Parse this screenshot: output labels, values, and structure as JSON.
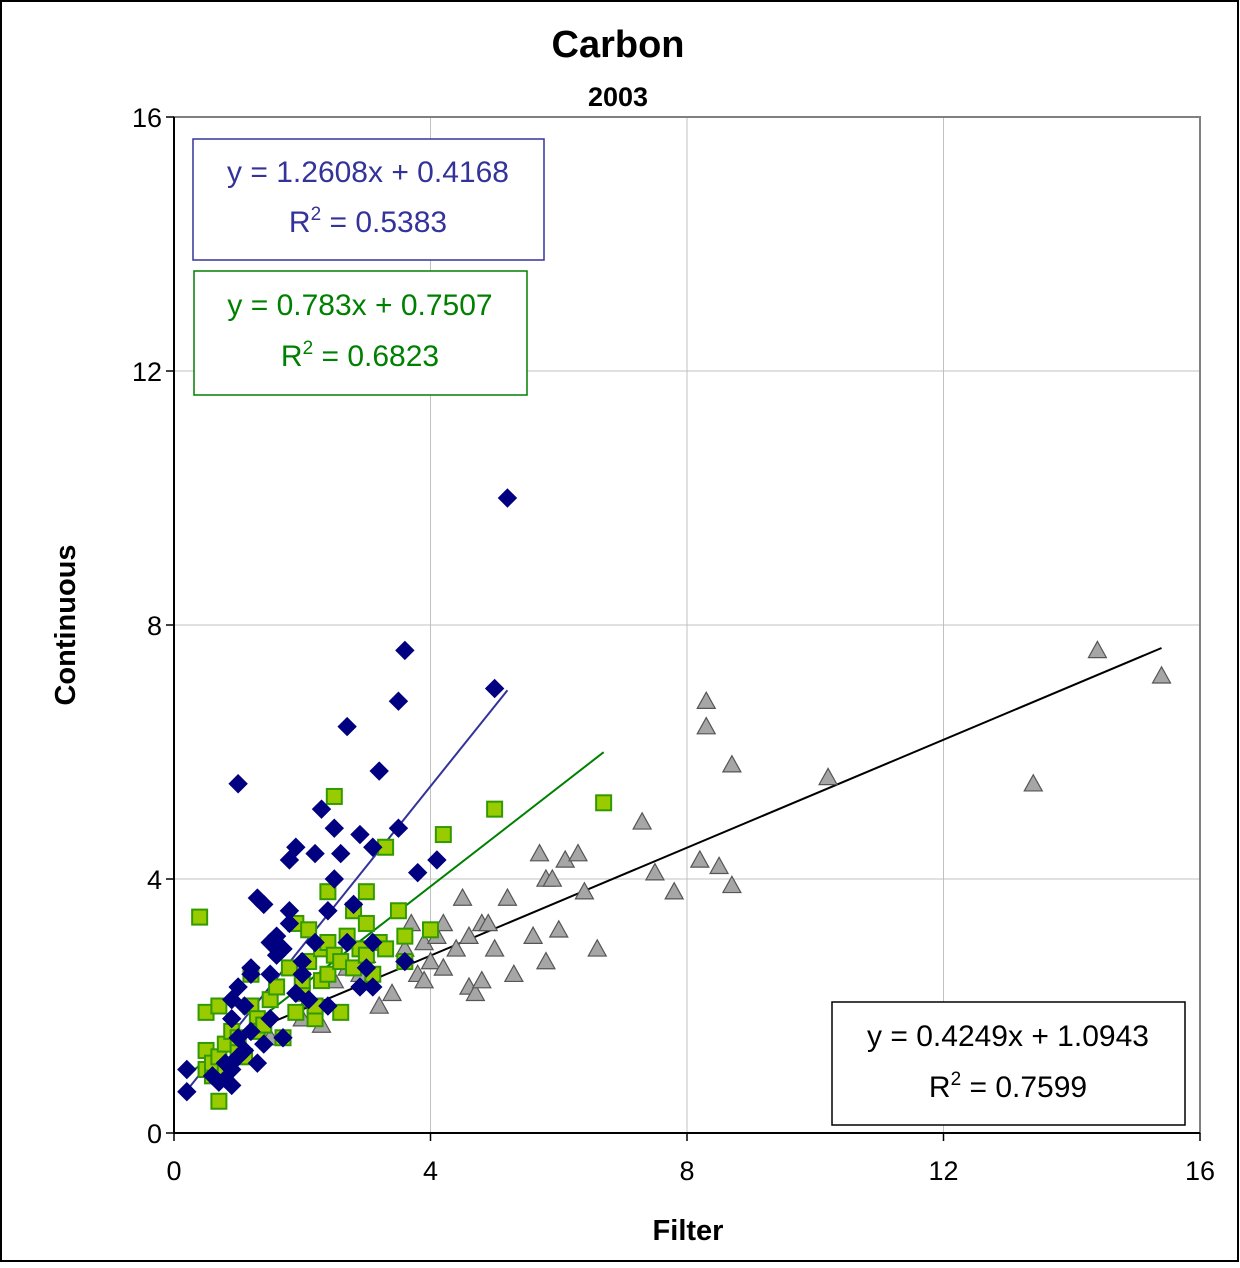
{
  "chart_data": {
    "type": "scatter",
    "title": "Carbon",
    "subtitle": "2003",
    "xlabel": "Filter",
    "ylabel": "Continuous",
    "xlim": [
      0,
      16
    ],
    "ylim": [
      0,
      16
    ],
    "x_ticks": [
      "0",
      "4",
      "8",
      "12",
      "16"
    ],
    "y_ticks": [
      "0",
      "4",
      "8",
      "12",
      "16"
    ],
    "grid": true,
    "legend": "none",
    "series": [
      {
        "marker": "diamond",
        "color": "#000080",
        "fit_color": "#33339a",
        "fit": {
          "slope": 1.2608,
          "intercept": 0.4168,
          "x_range": [
            0.2,
            5.2
          ]
        },
        "equation": "y = 1.2608x + 0.4168",
        "r2_label": "R",
        "r2_sup": "2",
        "r2_value": " = 0.5383",
        "points": [
          [
            0.2,
            1.0
          ],
          [
            0.2,
            0.65
          ],
          [
            0.6,
            0.9
          ],
          [
            0.7,
            0.8
          ],
          [
            0.8,
            1.1
          ],
          [
            0.8,
            0.85
          ],
          [
            0.9,
            1.0
          ],
          [
            0.9,
            0.75
          ],
          [
            0.9,
            1.8
          ],
          [
            0.9,
            2.1
          ],
          [
            1.0,
            2.3
          ],
          [
            1.0,
            1.5
          ],
          [
            1.0,
            1.2
          ],
          [
            1.0,
            5.5
          ],
          [
            1.1,
            1.3
          ],
          [
            1.1,
            2.0
          ],
          [
            1.2,
            2.6
          ],
          [
            1.2,
            2.5
          ],
          [
            1.2,
            1.6
          ],
          [
            1.3,
            1.1
          ],
          [
            1.3,
            3.7
          ],
          [
            1.4,
            3.6
          ],
          [
            1.4,
            1.4
          ],
          [
            1.5,
            2.5
          ],
          [
            1.5,
            1.8
          ],
          [
            1.5,
            3.0
          ],
          [
            1.6,
            2.8
          ],
          [
            1.6,
            3.1
          ],
          [
            1.7,
            2.9
          ],
          [
            1.7,
            1.5
          ],
          [
            1.8,
            3.5
          ],
          [
            1.8,
            3.3
          ],
          [
            1.8,
            4.3
          ],
          [
            1.9,
            4.5
          ],
          [
            1.9,
            2.2
          ],
          [
            2.0,
            2.5
          ],
          [
            2.0,
            2.7
          ],
          [
            2.1,
            2.1
          ],
          [
            2.2,
            4.4
          ],
          [
            2.2,
            3.0
          ],
          [
            2.3,
            5.1
          ],
          [
            2.4,
            3.5
          ],
          [
            2.4,
            2.0
          ],
          [
            2.5,
            4.8
          ],
          [
            2.5,
            4.0
          ],
          [
            2.6,
            4.4
          ],
          [
            2.7,
            6.4
          ],
          [
            2.7,
            3.0
          ],
          [
            2.8,
            3.6
          ],
          [
            2.9,
            2.3
          ],
          [
            2.9,
            4.7
          ],
          [
            3.0,
            2.6
          ],
          [
            3.1,
            4.5
          ],
          [
            3.1,
            2.3
          ],
          [
            3.2,
            5.7
          ],
          [
            3.5,
            6.8
          ],
          [
            3.6,
            7.6
          ],
          [
            3.5,
            4.8
          ],
          [
            3.6,
            2.7
          ],
          [
            3.8,
            4.1
          ],
          [
            4.1,
            4.3
          ],
          [
            5.0,
            7.0
          ],
          [
            5.2,
            10.0
          ],
          [
            3.1,
            3.0
          ]
        ]
      },
      {
        "marker": "square",
        "color": "#99cc00",
        "edge_color": "#339900",
        "fit_color": "#008000",
        "fit": {
          "slope": 0.783,
          "intercept": 0.7507,
          "x_range": [
            0.3,
            6.7
          ]
        },
        "equation": "y = 0.783x + 0.7507",
        "r2_label": "R",
        "r2_sup": "2",
        "r2_value": " = 0.6823",
        "points": [
          [
            0.4,
            3.4
          ],
          [
            0.5,
            1.0
          ],
          [
            0.5,
            1.3
          ],
          [
            0.5,
            1.9
          ],
          [
            0.6,
            0.9
          ],
          [
            0.6,
            1.1
          ],
          [
            0.7,
            0.5
          ],
          [
            0.7,
            1.2
          ],
          [
            0.7,
            2.0
          ],
          [
            0.8,
            1.4
          ],
          [
            0.8,
            1.0
          ],
          [
            0.9,
            1.6
          ],
          [
            1.0,
            1.3
          ],
          [
            1.0,
            1.5
          ],
          [
            1.1,
            1.2
          ],
          [
            1.2,
            2.0
          ],
          [
            1.2,
            2.5
          ],
          [
            1.3,
            1.8
          ],
          [
            1.3,
            1.6
          ],
          [
            1.4,
            1.7
          ],
          [
            1.5,
            2.1
          ],
          [
            1.6,
            2.3
          ],
          [
            1.7,
            1.5
          ],
          [
            1.8,
            2.6
          ],
          [
            1.9,
            3.3
          ],
          [
            1.9,
            1.9
          ],
          [
            2.0,
            2.2
          ],
          [
            2.0,
            2.4
          ],
          [
            2.1,
            2.7
          ],
          [
            2.1,
            3.2
          ],
          [
            2.2,
            1.8
          ],
          [
            2.2,
            2.0
          ],
          [
            2.3,
            2.4
          ],
          [
            2.3,
            2.9
          ],
          [
            2.4,
            3.0
          ],
          [
            2.4,
            3.8
          ],
          [
            2.4,
            2.5
          ],
          [
            2.5,
            5.3
          ],
          [
            2.5,
            2.8
          ],
          [
            2.6,
            1.9
          ],
          [
            2.6,
            2.7
          ],
          [
            2.7,
            3.1
          ],
          [
            2.8,
            3.5
          ],
          [
            2.8,
            2.6
          ],
          [
            2.9,
            2.9
          ],
          [
            3.0,
            3.8
          ],
          [
            3.0,
            3.3
          ],
          [
            3.0,
            2.8
          ],
          [
            3.1,
            2.5
          ],
          [
            3.2,
            3.0
          ],
          [
            3.3,
            4.5
          ],
          [
            3.3,
            2.9
          ],
          [
            3.5,
            3.5
          ],
          [
            3.6,
            2.7
          ],
          [
            3.6,
            3.1
          ],
          [
            4.0,
            3.2
          ],
          [
            4.2,
            4.7
          ],
          [
            5.0,
            5.1
          ],
          [
            6.7,
            5.2
          ]
        ]
      },
      {
        "marker": "triangle",
        "color": "#a6a6a6",
        "edge_color": "#555555",
        "fit_color": "#000000",
        "fit": {
          "slope": 0.4249,
          "intercept": 1.0943,
          "x_range": [
            1.0,
            15.4
          ]
        },
        "equation": "y = 0.4249x + 1.0943",
        "r2_label": "R",
        "r2_sup": "2",
        "r2_value": " = 0.7599",
        "points": [
          [
            1.5,
            1.5
          ],
          [
            2.0,
            1.8
          ],
          [
            2.1,
            2.1
          ],
          [
            2.3,
            1.7
          ],
          [
            2.5,
            2.4
          ],
          [
            2.7,
            2.6
          ],
          [
            2.9,
            2.5
          ],
          [
            3.0,
            2.8
          ],
          [
            3.2,
            2.0
          ],
          [
            3.4,
            2.2
          ],
          [
            3.6,
            2.9
          ],
          [
            3.7,
            3.3
          ],
          [
            3.8,
            2.5
          ],
          [
            3.9,
            2.4
          ],
          [
            3.9,
            3.0
          ],
          [
            4.0,
            2.7
          ],
          [
            4.1,
            3.1
          ],
          [
            4.2,
            2.6
          ],
          [
            4.2,
            3.3
          ],
          [
            4.4,
            2.9
          ],
          [
            4.5,
            3.7
          ],
          [
            4.6,
            2.3
          ],
          [
            4.6,
            3.1
          ],
          [
            4.7,
            2.2
          ],
          [
            4.8,
            2.4
          ],
          [
            4.8,
            3.3
          ],
          [
            4.9,
            3.3
          ],
          [
            5.0,
            2.9
          ],
          [
            5.2,
            3.7
          ],
          [
            5.3,
            2.5
          ],
          [
            5.6,
            3.1
          ],
          [
            5.7,
            4.4
          ],
          [
            5.8,
            2.7
          ],
          [
            5.8,
            4.0
          ],
          [
            5.9,
            4.0
          ],
          [
            6.0,
            3.2
          ],
          [
            6.1,
            4.3
          ],
          [
            6.3,
            4.4
          ],
          [
            6.4,
            3.8
          ],
          [
            6.6,
            2.9
          ],
          [
            7.3,
            4.9
          ],
          [
            7.5,
            4.1
          ],
          [
            7.8,
            3.8
          ],
          [
            8.2,
            4.3
          ],
          [
            8.3,
            6.8
          ],
          [
            8.3,
            6.4
          ],
          [
            8.5,
            4.2
          ],
          [
            8.7,
            3.9
          ],
          [
            8.7,
            5.8
          ],
          [
            10.2,
            5.6
          ],
          [
            13.4,
            5.5
          ],
          [
            14.4,
            7.6
          ],
          [
            15.4,
            7.2
          ]
        ]
      }
    ]
  }
}
